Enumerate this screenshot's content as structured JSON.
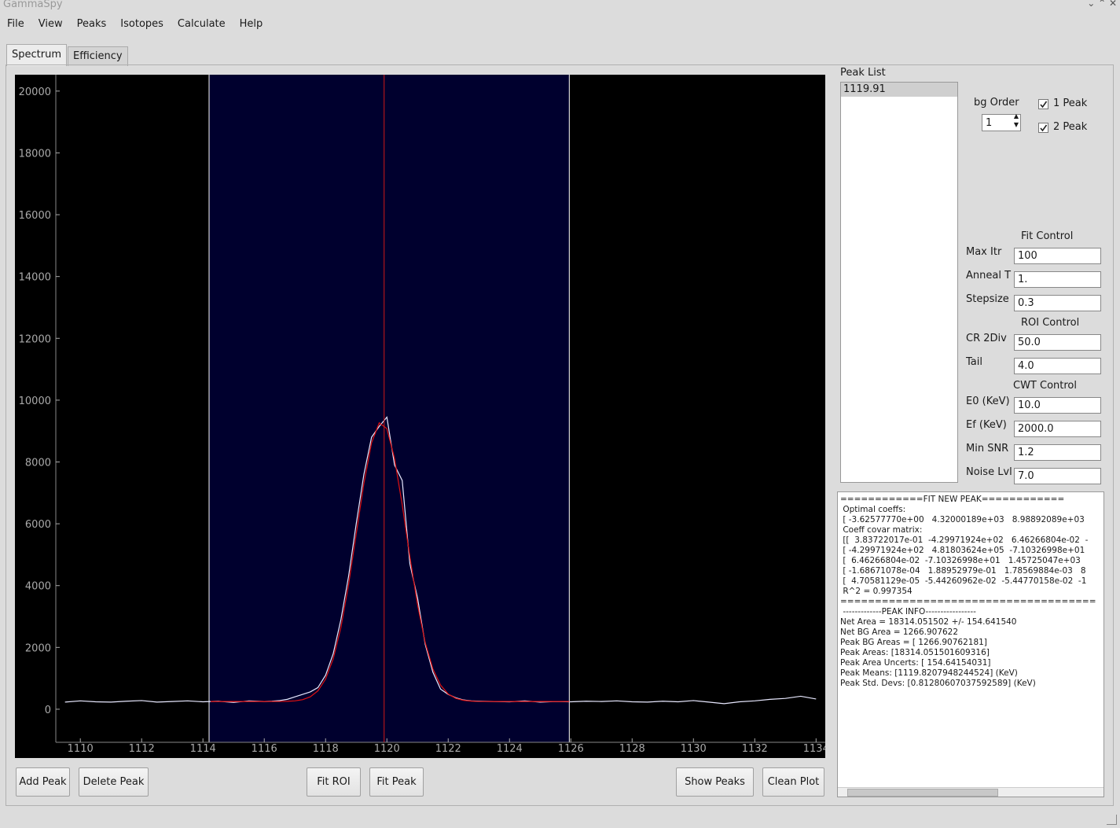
{
  "window": {
    "title": "GammaSpy"
  },
  "menu": [
    "File",
    "View",
    "Peaks",
    "Isotopes",
    "Calculate",
    "Help"
  ],
  "tabs": [
    "Spectrum",
    "Efficiency"
  ],
  "chart_data": {
    "type": "line",
    "xlim": [
      1109.2,
      1134.3
    ],
    "ylim": [
      -1070,
      20530
    ],
    "xticks": [
      1110,
      1112,
      1114,
      1116,
      1118,
      1120,
      1122,
      1124,
      1126,
      1128,
      1130,
      1132,
      1134
    ],
    "yticks": [
      0,
      2000,
      4000,
      6000,
      8000,
      10000,
      12000,
      14000,
      16000,
      18000,
      20000
    ],
    "background": "#000000",
    "roi": [
      1114.2,
      1125.95
    ],
    "roi_color": "#00002e",
    "roi_edge_color": "#ffffff",
    "peak_markers": [
      1119.91
    ],
    "marker_color": "#d01818",
    "series": [
      {
        "color": "#e8e8ff",
        "x": [
          1109.5,
          1110,
          1110.5,
          1111,
          1111.5,
          1112,
          1112.5,
          1113,
          1113.5,
          1114,
          1114.5,
          1115,
          1115.5,
          1116,
          1116.25,
          1116.5,
          1116.75,
          1117,
          1117.25,
          1117.5,
          1117.75,
          1118,
          1118.25,
          1118.5,
          1118.75,
          1119,
          1119.25,
          1119.5,
          1119.75,
          1120,
          1120.25,
          1120.5,
          1120.75,
          1121,
          1121.25,
          1121.5,
          1121.75,
          1122,
          1122.25,
          1122.5,
          1122.75,
          1123,
          1123.5,
          1124,
          1124.5,
          1125,
          1125.5,
          1126,
          1126.5,
          1127,
          1127.5,
          1128,
          1128.5,
          1129,
          1129.5,
          1130,
          1130.5,
          1131,
          1131.5,
          1132,
          1132.5,
          1133,
          1133.5,
          1134
        ],
        "values": [
          230,
          270,
          240,
          230,
          260,
          280,
          230,
          250,
          270,
          240,
          260,
          220,
          270,
          250,
          260,
          280,
          320,
          400,
          480,
          560,
          700,
          1100,
          1800,
          2900,
          4300,
          6000,
          7600,
          8800,
          9150,
          9450,
          7900,
          7400,
          4700,
          3600,
          2100,
          1200,
          650,
          480,
          370,
          300,
          270,
          260,
          250,
          240,
          270,
          230,
          250,
          240,
          260,
          250,
          270,
          240,
          230,
          260,
          240,
          280,
          230,
          180,
          240,
          270,
          320,
          350,
          420,
          330
        ]
      },
      {
        "color": "#e01010",
        "x": [
          1114.25,
          1115,
          1116,
          1116.5,
          1116.75,
          1117,
          1117.25,
          1117.5,
          1117.75,
          1118,
          1118.25,
          1118.5,
          1118.75,
          1119,
          1119.25,
          1119.5,
          1119.75,
          1120,
          1120.25,
          1120.5,
          1120.75,
          1121,
          1121.25,
          1121.5,
          1121.75,
          1122,
          1122.25,
          1122.5,
          1122.75,
          1123,
          1124,
          1125,
          1125.95
        ],
        "values": [
          250,
          250,
          250,
          252,
          257,
          271,
          309,
          400,
          595,
          977,
          1635,
          2645,
          4030,
          5673,
          7310,
          8620,
          9266,
          9080,
          8110,
          6615,
          4930,
          3382,
          2154,
          1303,
          780,
          492,
          350,
          288,
          262,
          252,
          250,
          250,
          250
        ]
      }
    ]
  },
  "buttons": [
    "Add Peak",
    "Delete Peak",
    "Fit ROI",
    "Fit Peak",
    "Show Peaks",
    "Clean Plot"
  ],
  "peak_list": {
    "label": "Peak List",
    "items": [
      "1119.91"
    ],
    "selected_index": 0
  },
  "bg_order": {
    "label": "bg Order",
    "value": "1"
  },
  "checkboxes": [
    {
      "label": "1 Peak",
      "checked": true
    },
    {
      "label": "2 Peak",
      "checked": true
    }
  ],
  "controls": [
    {
      "heading": "Fit Control",
      "fields": [
        {
          "label": "Max Itr",
          "value": "100"
        },
        {
          "label": "Anneal T",
          "value": "1."
        },
        {
          "label": "Stepsize",
          "value": "0.3"
        }
      ]
    },
    {
      "heading": "ROI Control",
      "fields": [
        {
          "label": "CR 2Div",
          "value": "50.0"
        },
        {
          "label": "Tail",
          "value": "4.0"
        }
      ]
    },
    {
      "heading": "CWT Control",
      "fields": [
        {
          "label": "E0 (KeV)",
          "value": "10.0"
        },
        {
          "label": "Ef (KeV)",
          "value": "2000.0"
        },
        {
          "label": "Min SNR",
          "value": "1.2"
        },
        {
          "label": "Noise Lvl",
          "value": "7.0"
        }
      ]
    }
  ],
  "output": {
    "lines": [
      "============FIT NEW PEAK============",
      " Optimal coeffs:",
      " [ -3.62577770e+00   4.32000189e+03   8.98892089e+03",
      " Coeff covar matrix:",
      " [[  3.83722017e-01  -4.29971924e+02   6.46266804e-02  -",
      " [ -4.29971924e+02   4.81803624e+05  -7.10326998e+01",
      " [  6.46266804e-02  -7.10326998e+01   1.45725047e+03",
      " [ -1.68671078e-04   1.88952979e-01   1.78569884e-03   8",
      " [  4.70581129e-05  -5.44260962e-02  -5.44770158e-02  -1",
      " R^2 = 0.997354",
      "=====================================",
      " -------------PEAK INFO-----------------",
      "Net Area = 18314.051502 +/- 154.641540",
      "Net BG Area = 1266.907622",
      "Peak BG Areas = [ 1266.90762181]",
      "Peak Areas: [18314.051501609316]",
      "Peak Area Uncerts: [ 154.64154031]",
      "Peak Means: [1119.8207948244524] (KeV)",
      "Peak Std. Devs: [0.81280607037592589] (KeV)"
    ]
  }
}
